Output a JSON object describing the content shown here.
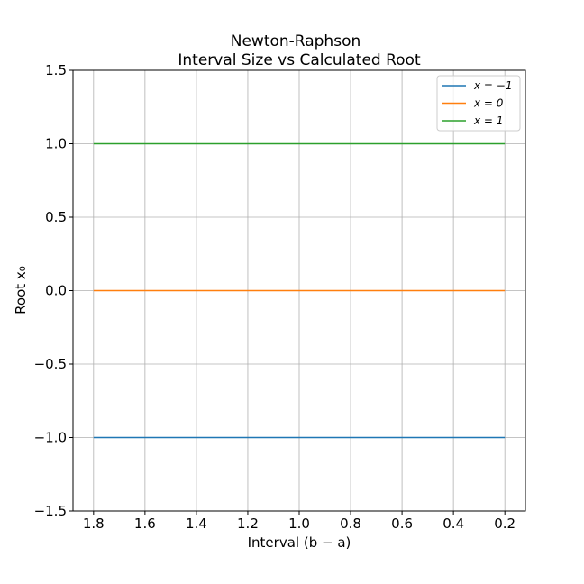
{
  "chart_data": {
    "type": "line",
    "title": "Newton-Raphson",
    "subtitle": "Interval Size vs Calculated Root",
    "xlabel": "Interval (b − a)",
    "ylabel": "Root x₀",
    "x_inverted": true,
    "xlim": [
      1.88,
      0.12
    ],
    "ylim": [
      -1.5,
      1.5
    ],
    "x_ticks": [
      1.8,
      1.6,
      1.4,
      1.2,
      1.0,
      0.8,
      0.6,
      0.4,
      0.2
    ],
    "x_tick_labels": [
      "1.8",
      "1.6",
      "1.4",
      "1.2",
      "1.0",
      "0.8",
      "0.6",
      "0.4",
      "0.2"
    ],
    "y_ticks": [
      -1.5,
      -1.0,
      -0.5,
      0.0,
      0.5,
      1.0,
      1.5
    ],
    "y_tick_labels": [
      "−1.5",
      "−1.0",
      "−0.5",
      "0.0",
      "0.5",
      "1.0",
      "1.5"
    ],
    "grid": true,
    "legend_position": "top-right",
    "x": [
      1.8,
      1.6,
      1.4,
      1.2,
      1.0,
      0.8,
      0.6,
      0.4,
      0.2
    ],
    "series": [
      {
        "name": "x = −1",
        "color": "#1f77b4",
        "values": [
          -1,
          -1,
          -1,
          -1,
          -1,
          -1,
          -1,
          -1,
          -1
        ]
      },
      {
        "name": "x = 0",
        "color": "#ff7f0e",
        "values": [
          0,
          0,
          0,
          0,
          0,
          0,
          0,
          0,
          0
        ]
      },
      {
        "name": "x = 1",
        "color": "#2ca02c",
        "values": [
          1,
          1,
          1,
          1,
          1,
          1,
          1,
          1,
          1
        ]
      }
    ]
  }
}
